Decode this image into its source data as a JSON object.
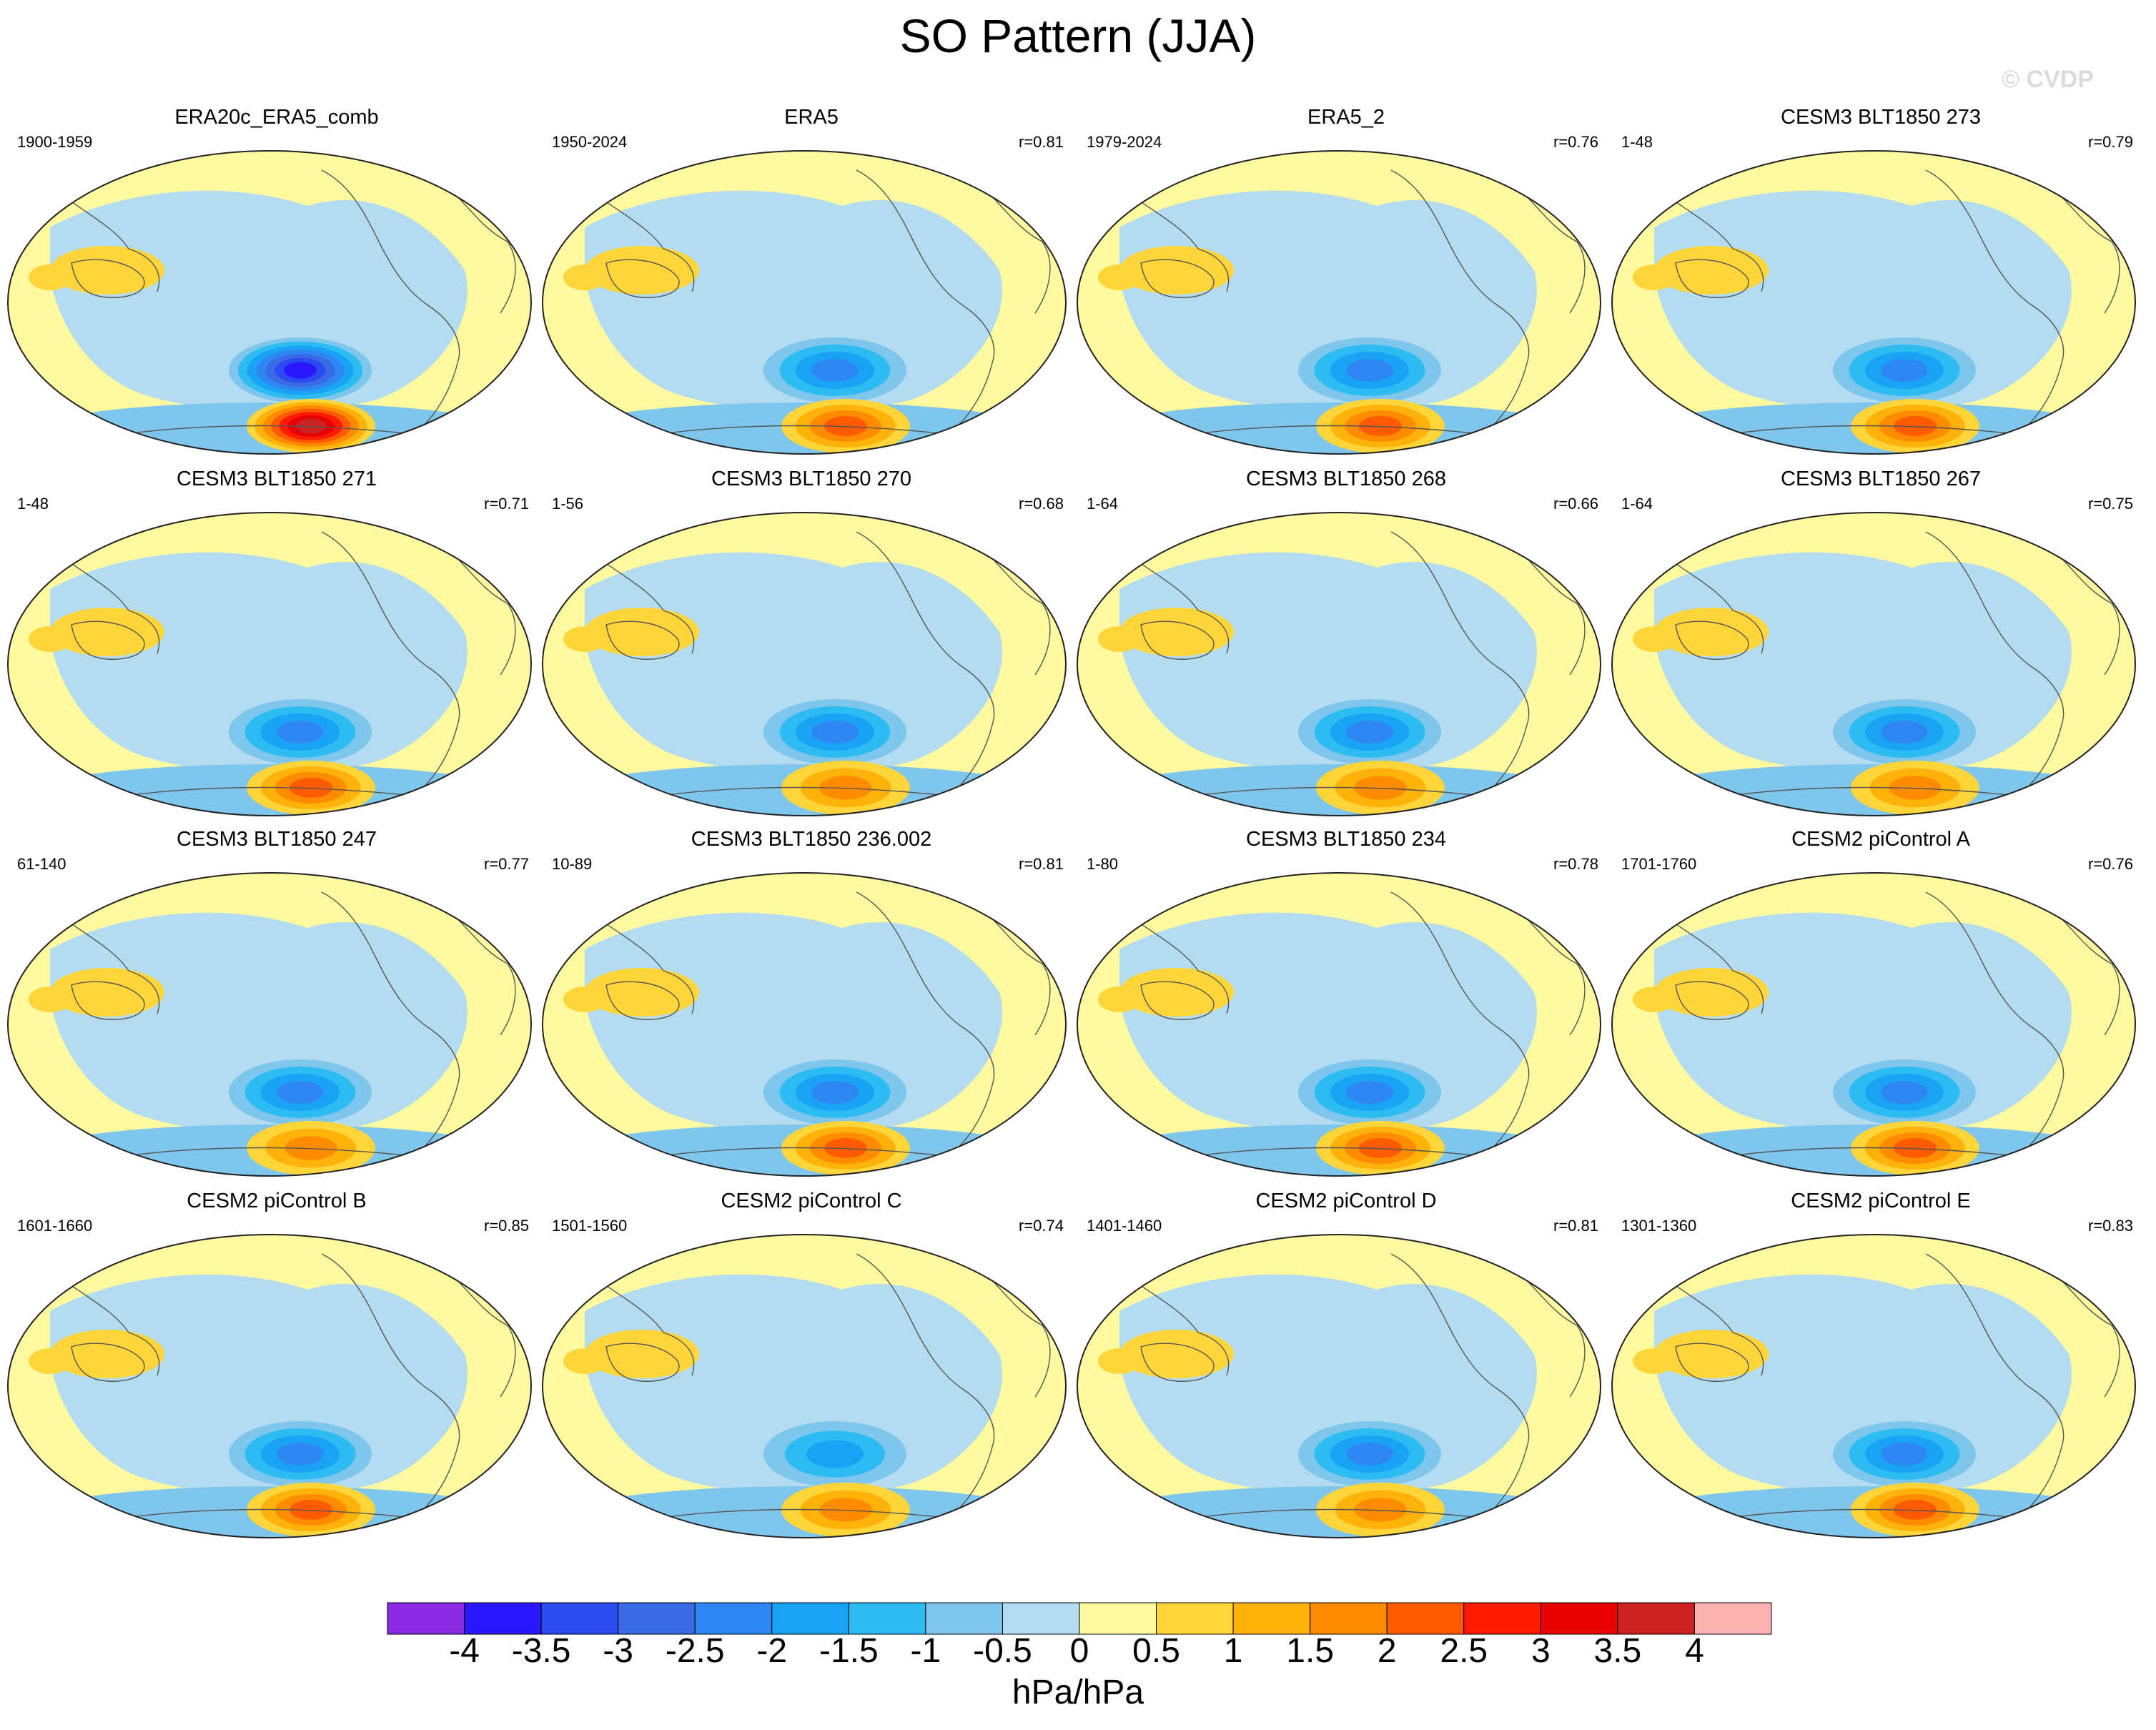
{
  "title": "SO Pattern (JJA)",
  "watermark": "© CVDP",
  "units": "hPa/hPa",
  "colorbar": {
    "labels": [
      "-4",
      "-3.5",
      "-3",
      "-2.5",
      "-2",
      "-1.5",
      "-1",
      "-0.5",
      "0",
      "0.5",
      "1",
      "1.5",
      "2",
      "2.5",
      "3",
      "3.5",
      "4"
    ],
    "colors": [
      "#8a2be2",
      "#2a17ff",
      "#2a4bf0",
      "#3a6ae6",
      "#2e86f2",
      "#1aa3f5",
      "#2cbcf2",
      "#7fc6ec",
      "#b4dcf0",
      "#fffaa0",
      "#ffd53a",
      "#ffb30a",
      "#ff8c00",
      "#ff5a00",
      "#ff1a00",
      "#e60000",
      "#cc2222",
      "#ffb4b4"
    ]
  },
  "panels": [
    {
      "title": "ERA20c_ERA5_comb",
      "years": "1900-1959",
      "corr": "",
      "neg": 3.5,
      "pos": 3.5
    },
    {
      "title": "ERA5",
      "years": "1950-2024",
      "corr": "r=0.81",
      "neg": 2.0,
      "pos": 2.0
    },
    {
      "title": "ERA5_2",
      "years": "1979-2024",
      "corr": "r=0.76",
      "neg": 2.0,
      "pos": 2.0
    },
    {
      "title": "CESM3 BLT1850 273",
      "years": "1-48",
      "corr": "r=0.79",
      "neg": 2.0,
      "pos": 2.0
    },
    {
      "title": "CESM3 BLT1850 271",
      "years": "1-48",
      "corr": "r=0.71",
      "neg": 2.0,
      "pos": 2.0
    },
    {
      "title": "CESM3 BLT1850 270",
      "years": "1-56",
      "corr": "r=0.68",
      "neg": 2.0,
      "pos": 1.5
    },
    {
      "title": "CESM3 BLT1850 268",
      "years": "1-64",
      "corr": "r=0.66",
      "neg": 2.0,
      "pos": 1.5
    },
    {
      "title": "CESM3 BLT1850 267",
      "years": "1-64",
      "corr": "r=0.75",
      "neg": 2.0,
      "pos": 1.5
    },
    {
      "title": "CESM3 BLT1850 247",
      "years": "61-140",
      "corr": "r=0.77",
      "neg": 2.0,
      "pos": 1.5
    },
    {
      "title": "CESM3 BLT1850 236.002",
      "years": "10-89",
      "corr": "r=0.81",
      "neg": 2.0,
      "pos": 2.0
    },
    {
      "title": "CESM3 BLT1850 234",
      "years": "1-80",
      "corr": "r=0.78",
      "neg": 2.0,
      "pos": 2.0
    },
    {
      "title": "CESM2 piControl A",
      "years": "1701-1760",
      "corr": "r=0.76",
      "neg": 2.0,
      "pos": 2.0
    },
    {
      "title": "CESM2 piControl B",
      "years": "1601-1660",
      "corr": "r=0.85",
      "neg": 2.0,
      "pos": 2.0
    },
    {
      "title": "CESM2 piControl C",
      "years": "1501-1560",
      "corr": "r=0.74",
      "neg": 1.5,
      "pos": 1.5
    },
    {
      "title": "CESM2 piControl D",
      "years": "1401-1460",
      "corr": "r=0.81",
      "neg": 2.0,
      "pos": 1.5
    },
    {
      "title": "CESM2 piControl E",
      "years": "1301-1360",
      "corr": "r=0.83",
      "neg": 2.0,
      "pos": 2.0
    }
  ]
}
